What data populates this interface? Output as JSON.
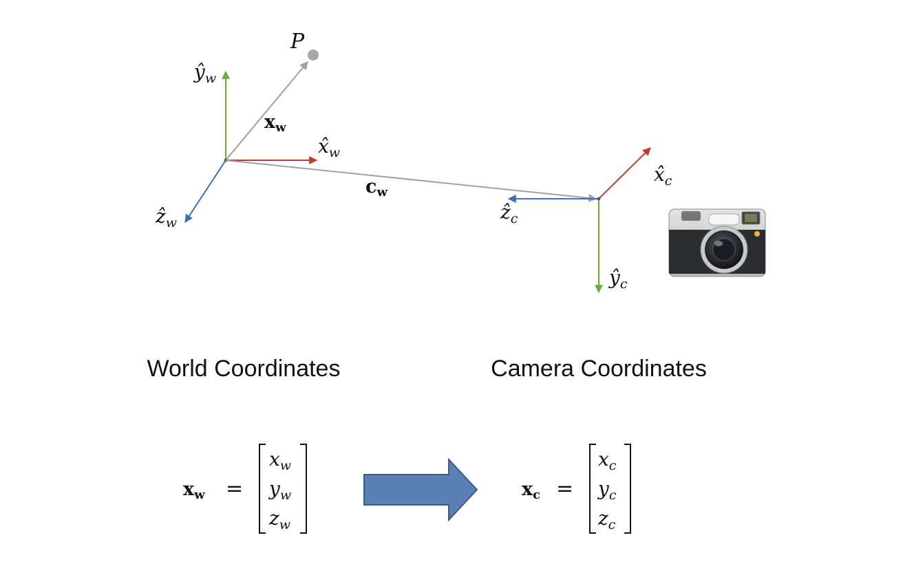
{
  "diagram": {
    "point_label": "P",
    "world_axes": {
      "y": "ŷ",
      "y_sub": "w",
      "x": "x̂",
      "x_sub": "w",
      "z": "ẑ",
      "z_sub": "w"
    },
    "camera_axes": {
      "x": "x̂",
      "x_sub": "c",
      "y": "ŷ",
      "y_sub": "c",
      "z": "ẑ",
      "z_sub": "c"
    },
    "vectors": {
      "xw": "x",
      "xw_sub": "w",
      "cw": "c",
      "cw_sub": "w"
    },
    "colors": {
      "x_axis": "#c0392b",
      "y_axis": "#6aab3e",
      "z_axis": "#3a6cc4",
      "vector": "#a0a0a0",
      "arrow_fill": "#5b80b8",
      "arrow_stroke": "#3d5a80"
    }
  },
  "captions": {
    "world": "World Coordinates",
    "camera": "Camera Coordinates"
  },
  "equations": {
    "world": {
      "lhs": "x",
      "lhs_sub": "w",
      "equals": "=",
      "entries": [
        "x",
        "y",
        "z"
      ],
      "entries_sub": "w"
    },
    "camera": {
      "lhs": "x",
      "lhs_sub": "c",
      "equals": "=",
      "entries": [
        "x",
        "y",
        "z"
      ],
      "entries_sub": "c"
    }
  }
}
